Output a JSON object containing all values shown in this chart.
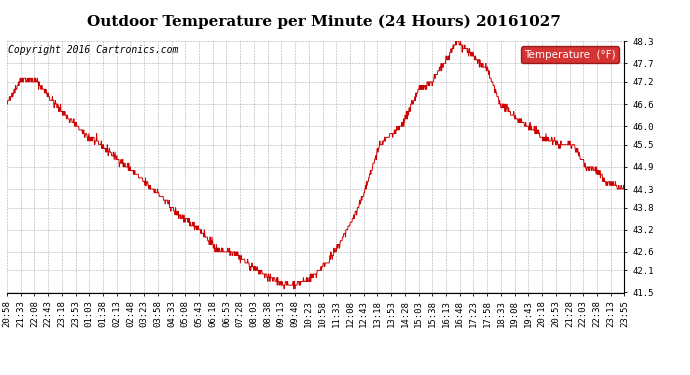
{
  "title": "Outdoor Temperature per Minute (24 Hours) 20161027",
  "copyright_text": "Copyright 2016 Cartronics.com",
  "legend_label": "Temperature  (°F)",
  "legend_bg": "#cc0000",
  "legend_text_color": "#ffffff",
  "line_color": "#cc0000",
  "background_color": "#ffffff",
  "grid_color": "#999999",
  "ylim": [
    41.5,
    48.3
  ],
  "yticks": [
    41.5,
    42.1,
    42.6,
    43.2,
    43.8,
    44.3,
    44.9,
    45.5,
    46.0,
    46.6,
    47.2,
    47.7,
    48.3
  ],
  "x_labels": [
    "20:58",
    "21:33",
    "22:08",
    "22:43",
    "23:18",
    "23:53",
    "01:03",
    "01:38",
    "02:13",
    "02:48",
    "03:23",
    "03:58",
    "04:33",
    "05:08",
    "05:43",
    "06:18",
    "06:53",
    "07:28",
    "08:03",
    "08:38",
    "09:13",
    "09:48",
    "10:23",
    "10:58",
    "11:33",
    "12:08",
    "12:43",
    "13:18",
    "13:53",
    "14:28",
    "15:03",
    "15:38",
    "16:13",
    "16:48",
    "17:23",
    "17:58",
    "18:33",
    "19:08",
    "19:43",
    "20:18",
    "20:53",
    "21:28",
    "22:03",
    "22:38",
    "23:13",
    "23:55"
  ],
  "title_fontsize": 11,
  "axis_fontsize": 6.5,
  "copyright_fontsize": 7,
  "keypoints_t": [
    0,
    35,
    70,
    120,
    180,
    240,
    300,
    350,
    400,
    450,
    490,
    530,
    570,
    620,
    655,
    680,
    710,
    760,
    820,
    870,
    920,
    960,
    990,
    1020,
    1050,
    1070,
    1090,
    1120,
    1150,
    1200,
    1250,
    1290,
    1320,
    1350,
    1370,
    1395,
    1415,
    1435,
    1439
  ],
  "keypoints_v": [
    46.6,
    47.3,
    47.2,
    46.5,
    45.8,
    45.3,
    44.7,
    44.2,
    43.6,
    43.2,
    42.65,
    42.6,
    42.2,
    41.85,
    41.7,
    41.75,
    41.9,
    42.5,
    43.8,
    45.5,
    46.0,
    47.0,
    47.2,
    47.7,
    48.3,
    48.1,
    47.85,
    47.5,
    46.6,
    46.1,
    45.7,
    45.5,
    45.5,
    44.9,
    44.85,
    44.5,
    44.4,
    44.3,
    44.3
  ]
}
